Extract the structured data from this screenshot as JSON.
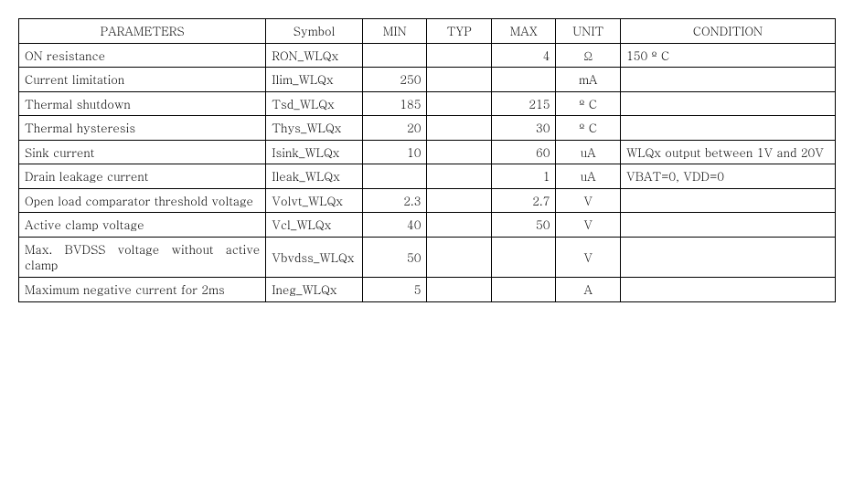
{
  "headers": {
    "param": "PARAMETERS",
    "sym": "Symbol",
    "min": "MIN",
    "typ": "TYP",
    "max": "MAX",
    "unit": "UNIT",
    "cond": "CONDITION"
  },
  "rows": [
    {
      "param": "ON resistance",
      "sym": "RON_WLQx",
      "min": "",
      "typ": "",
      "max": "4",
      "unit": "Ω",
      "cond": "150 º C"
    },
    {
      "param": "Current limitation",
      "sym": "Ilim_WLQx",
      "min": "250",
      "typ": "",
      "max": "",
      "unit": "mA",
      "cond": ""
    },
    {
      "param": "Thermal shutdown",
      "sym": "Tsd_WLQx",
      "min": "185",
      "typ": "",
      "max": "215",
      "unit": "º C",
      "cond": ""
    },
    {
      "param": "Thermal hysteresis",
      "sym": "Thys_WLQx",
      "min": "20",
      "typ": "",
      "max": "30",
      "unit": "º C",
      "cond": ""
    },
    {
      "param": "Sink current",
      "sym": "Isink_WLQx",
      "min": "10",
      "typ": "",
      "max": "60",
      "unit": "uA",
      "cond": "WLQx output between 1V and 20V"
    },
    {
      "param": "Drain leakage current",
      "sym": "Ileak_WLQx",
      "min": "",
      "typ": "",
      "max": "1",
      "unit": "uA",
      "cond": "VBAT=0, VDD=0"
    },
    {
      "param": "Open load comparator threshold voltage",
      "sym": "Volvt_WLQx",
      "min": "2.3",
      "typ": "",
      "max": "2.7",
      "unit": "V",
      "cond": ""
    },
    {
      "param": "Active clamp voltage",
      "sym": "Vcl_WLQx",
      "min": "40",
      "typ": "",
      "max": "50",
      "unit": "V",
      "cond": ""
    },
    {
      "param": "Max. BVDSS voltage without active clamp",
      "sym": "Vbvdss_WLQx",
      "min": "50",
      "typ": "",
      "max": "",
      "unit": "V",
      "cond": ""
    },
    {
      "param": "Maximum negative current for 2ms",
      "sym": "Ineg_WLQx",
      "min": "5",
      "typ": "",
      "max": "",
      "unit": "A",
      "cond": ""
    }
  ]
}
